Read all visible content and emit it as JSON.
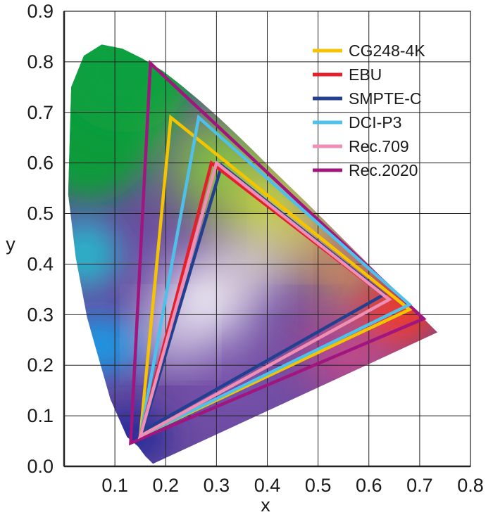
{
  "chart_data": {
    "type": "scatter",
    "title": "",
    "xlabel": "x",
    "ylabel": "y",
    "xlim": [
      0,
      0.8
    ],
    "ylim": [
      0,
      0.9
    ],
    "x_ticks": [
      "0.1",
      "0.2",
      "0.3",
      "0.4",
      "0.5",
      "0.6",
      "0.7",
      "0.8"
    ],
    "y_ticks": [
      "0.0",
      "0.1",
      "0.2",
      "0.3",
      "0.4",
      "0.5",
      "0.6",
      "0.7",
      "0.8",
      "0.9"
    ],
    "grid": true,
    "legend_position": "top-right",
    "spectral_locus": [
      [
        0.175,
        0.005
      ],
      [
        0.17,
        0.01
      ],
      [
        0.16,
        0.02
      ],
      [
        0.145,
        0.04
      ],
      [
        0.124,
        0.058
      ],
      [
        0.091,
        0.133
      ],
      [
        0.045,
        0.295
      ],
      [
        0.023,
        0.413
      ],
      [
        0.008,
        0.538
      ],
      [
        0.014,
        0.75
      ],
      [
        0.039,
        0.812
      ],
      [
        0.074,
        0.834
      ],
      [
        0.115,
        0.826
      ],
      [
        0.155,
        0.806
      ],
      [
        0.194,
        0.782
      ],
      [
        0.23,
        0.754
      ],
      [
        0.266,
        0.724
      ],
      [
        0.302,
        0.692
      ],
      [
        0.337,
        0.659
      ],
      [
        0.373,
        0.624
      ],
      [
        0.408,
        0.589
      ],
      [
        0.444,
        0.554
      ],
      [
        0.479,
        0.52
      ],
      [
        0.512,
        0.487
      ],
      [
        0.545,
        0.454
      ],
      [
        0.575,
        0.424
      ],
      [
        0.603,
        0.396
      ],
      [
        0.627,
        0.372
      ],
      [
        0.648,
        0.351
      ],
      [
        0.666,
        0.334
      ],
      [
        0.68,
        0.32
      ],
      [
        0.692,
        0.308
      ],
      [
        0.735,
        0.265
      ]
    ],
    "series": [
      {
        "name": "CG248-4K",
        "color": "#f5c400",
        "points": [
          [
            0.68,
            0.31
          ],
          [
            0.21,
            0.69
          ],
          [
            0.15,
            0.06
          ]
        ]
      },
      {
        "name": "EBU",
        "color": "#e3202b",
        "points": [
          [
            0.64,
            0.33
          ],
          [
            0.29,
            0.6
          ],
          [
            0.15,
            0.06
          ]
        ]
      },
      {
        "name": "SMPTE-C",
        "color": "#233f8f",
        "points": [
          [
            0.63,
            0.34
          ],
          [
            0.31,
            0.595
          ],
          [
            0.155,
            0.07
          ]
        ]
      },
      {
        "name": "DCI-P3",
        "color": "#4fc0ea",
        "points": [
          [
            0.68,
            0.32
          ],
          [
            0.265,
            0.69
          ],
          [
            0.15,
            0.06
          ]
        ]
      },
      {
        "name": "Rec.709",
        "color": "#ee8fb5",
        "points": [
          [
            0.64,
            0.33
          ],
          [
            0.3,
            0.6
          ],
          [
            0.15,
            0.06
          ]
        ]
      },
      {
        "name": "Rec.2020",
        "color": "#a0157e",
        "points": [
          [
            0.708,
            0.292
          ],
          [
            0.17,
            0.797
          ],
          [
            0.131,
            0.046
          ]
        ]
      }
    ]
  }
}
